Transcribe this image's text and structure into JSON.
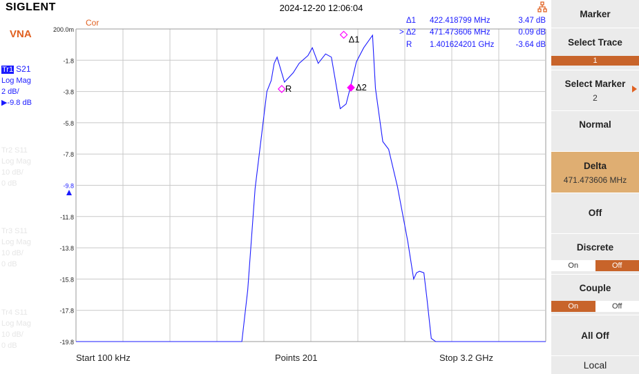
{
  "header": {
    "logo": "SIGLENT",
    "datetime": "2024-12-20 12:06:04"
  },
  "left_panel": {
    "mode": "VNA",
    "traces": [
      {
        "badge": "Tr1",
        "param": "S21",
        "format": "Log Mag",
        "scale": "2 dB/",
        "ref": "▶-9.8 dB",
        "active": true
      },
      {
        "badge": "Tr2",
        "param": "S11",
        "format": "Log Mag",
        "scale": "10 dB/",
        "ref": "0 dB",
        "active": false
      },
      {
        "badge": "Tr3",
        "param": "S11",
        "format": "Log Mag",
        "scale": "10 dB/",
        "ref": "0 dB",
        "active": false
      },
      {
        "badge": "Tr4",
        "param": "S11",
        "format": "Log Mag",
        "scale": "10 dB/",
        "ref": "0 dB",
        "active": false
      }
    ]
  },
  "plot": {
    "cor_label": "Cor",
    "y_ticks": [
      "200.0m",
      "-1.8",
      "-3.8",
      "-5.8",
      "-7.8",
      "-9.8",
      "-11.8",
      "-13.8",
      "-15.8",
      "-17.8",
      "-19.8"
    ],
    "markers_table": [
      {
        "prefix": "",
        "name": "Δ1",
        "freq": "422.418799 MHz",
        "value": "3.47 dB"
      },
      {
        "prefix": ">",
        "name": "Δ2",
        "freq": "471.473606 MHz",
        "value": "0.09 dB"
      },
      {
        "prefix": "",
        "name": "R",
        "freq": "1.401624201 GHz",
        "value": "-3.64 dB"
      }
    ],
    "marker_labels": {
      "r": "R",
      "d1": "Δ1",
      "d2": "Δ2"
    },
    "colors": {
      "trace": "#1a1aff",
      "marker": "#ff00ff",
      "grid": "#c8c8c8"
    }
  },
  "chart_data": {
    "type": "line",
    "x_start_label": "Start  100 kHz",
    "points_label": "Points  201",
    "x_stop_label": "Stop  3.2 GHz",
    "x_range_ghz": [
      0.0001,
      3.2
    ],
    "ylim": [
      -19.8,
      0.2
    ],
    "grid": true,
    "series": [
      {
        "values_x_ghz": [
          0,
          1.13,
          1.17,
          1.22,
          1.3,
          1.33,
          1.35,
          1.37,
          1.42,
          1.48,
          1.52,
          1.58,
          1.61,
          1.65,
          1.7,
          1.74,
          1.8,
          1.84,
          1.87,
          1.91,
          1.96,
          2.02,
          2.04,
          2.09,
          2.13,
          2.19,
          2.26,
          2.3,
          2.32,
          2.34,
          2.37,
          2.39,
          2.42,
          2.45,
          3.2
        ],
        "values_db": [
          -19.8,
          -19.8,
          -16.5,
          -10.0,
          -3.8,
          -3.1,
          -2.0,
          -1.6,
          -3.2,
          -2.6,
          -2.0,
          -1.5,
          -1.0,
          -2.0,
          -1.4,
          -1.6,
          -4.9,
          -4.6,
          -3.5,
          -1.9,
          -1.0,
          -0.2,
          -3.6,
          -7.0,
          -7.5,
          -9.9,
          -13.4,
          -15.8,
          -15.4,
          -15.3,
          -15.4,
          -17.0,
          -19.6,
          -19.8,
          -19.8
        ]
      }
    ],
    "markers": [
      {
        "name": "R",
        "x_ghz": 1.4016,
        "y_db": -3.64
      },
      {
        "name": "Δ1",
        "x_ghz": 1.824,
        "y_db": -0.17
      },
      {
        "name": "Δ2",
        "x_ghz": 1.873,
        "y_db": -3.55
      }
    ]
  },
  "softkeys": {
    "menu_title": "Marker",
    "select_trace": {
      "label": "Select Trace",
      "value": "1"
    },
    "select_marker": {
      "label": "Select Marker",
      "value": "2"
    },
    "normal": "Normal",
    "delta": {
      "label": "Delta",
      "value": "471.473606 MHz"
    },
    "off": "Off",
    "discrete": {
      "label": "Discrete",
      "on": "On",
      "off": "Off"
    },
    "couple": {
      "label": "Couple",
      "on": "On",
      "off": "Off"
    },
    "all_off": "All Off",
    "local": "Local"
  }
}
